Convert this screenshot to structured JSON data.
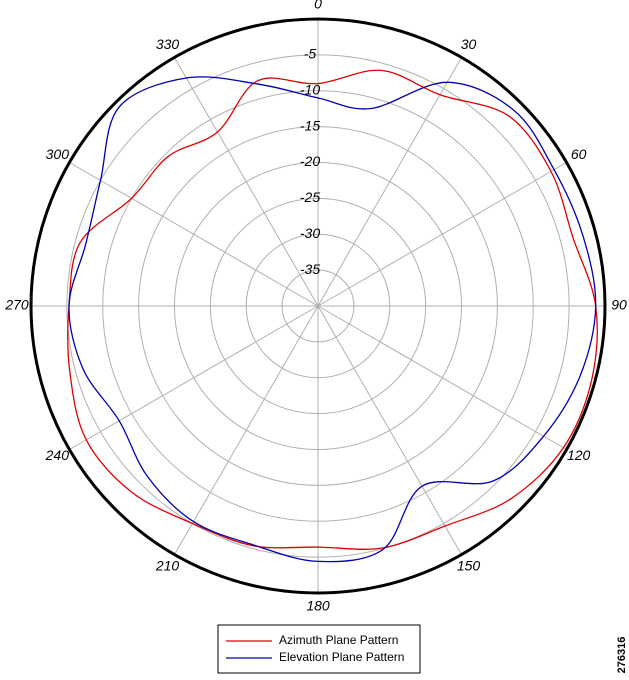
{
  "chart_data": {
    "type": "polar",
    "theta": [
      0,
      15,
      30,
      45,
      60,
      75,
      90,
      105,
      120,
      135,
      150,
      165,
      180,
      195,
      210,
      225,
      240,
      255,
      270,
      285,
      300,
      315,
      330,
      345
    ],
    "series": [
      {
        "name": "Azimuth Plane Pattern",
        "color": "#e00000",
        "values": [
          -9,
          -6,
          -6,
          -2.5,
          -2.5,
          -3.2,
          -1.3,
          -0.5,
          -0.5,
          -2,
          -4.6,
          -5.1,
          -6.4,
          -5.4,
          -5,
          -3.3,
          -2.7,
          -4.2,
          -5.3,
          -5.7,
          -10,
          -10.5,
          -12,
          -7.5
        ]
      },
      {
        "name": "Elevation Plane Pattern",
        "color": "#0000b0",
        "values": [
          -11,
          -11.5,
          -4,
          -1.4,
          -2,
          -1.8,
          -1.3,
          -2.2,
          -3.7,
          -5.5,
          -11,
          -4.9,
          -4.4,
          -5.5,
          -5.3,
          -6.4,
          -8,
          -6.1,
          -5.3,
          -6.5,
          -5,
          -0.8,
          -3.3,
          -8
        ]
      }
    ],
    "rlim": [
      -40,
      0
    ],
    "rticks": [
      -35,
      -30,
      -25,
      -20,
      -15,
      -10,
      -5
    ],
    "thetaticks": [
      0,
      30,
      60,
      90,
      120,
      150,
      180,
      210,
      240,
      270,
      300,
      330
    ],
    "grid": true,
    "legend": "bottom",
    "figure_id": "276316"
  }
}
